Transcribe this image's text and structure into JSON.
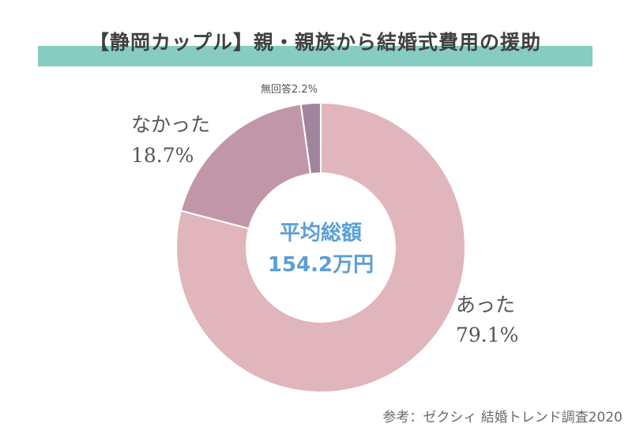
{
  "chart_data": {
    "type": "pie",
    "donut": true,
    "title": "【静岡カップル】親・親族から結婚式費用の援助",
    "slices": [
      {
        "label": "あった",
        "value": 79.1,
        "value_label": "79.1%",
        "color": "#e0b5bb"
      },
      {
        "label": "なかった",
        "value": 18.7,
        "value_label": "18.7%",
        "color": "#c196a8"
      },
      {
        "label": "無回答",
        "value": 2.2,
        "value_label": "2.2%",
        "color": "#a1849e"
      }
    ],
    "center_text": {
      "line1": "平均総額",
      "line2": "154.2万円",
      "color": "#5b9fd6"
    }
  },
  "footer": {
    "source": "参考：ゼクシィ 結婚トレンド調査2020"
  },
  "colors": {
    "title_band": "#86ccc1",
    "label_text": "#555555"
  }
}
